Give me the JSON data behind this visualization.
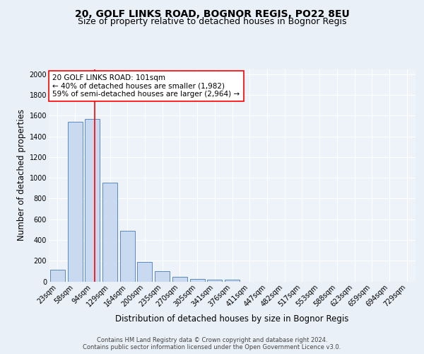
{
  "title_line1": "20, GOLF LINKS ROAD, BOGNOR REGIS, PO22 8EU",
  "title_line2": "Size of property relative to detached houses in Bognor Regis",
  "xlabel": "Distribution of detached houses by size in Bognor Regis",
  "ylabel": "Number of detached properties",
  "footnote": "Contains HM Land Registry data © Crown copyright and database right 2024.\nContains public sector information licensed under the Open Government Licence v3.0.",
  "bin_labels": [
    "23sqm",
    "58sqm",
    "94sqm",
    "129sqm",
    "164sqm",
    "200sqm",
    "235sqm",
    "270sqm",
    "305sqm",
    "341sqm",
    "376sqm",
    "411sqm",
    "447sqm",
    "482sqm",
    "517sqm",
    "553sqm",
    "588sqm",
    "623sqm",
    "659sqm",
    "694sqm",
    "729sqm"
  ],
  "bar_heights": [
    110,
    1540,
    1570,
    950,
    490,
    190,
    100,
    45,
    25,
    15,
    15,
    0,
    0,
    0,
    0,
    0,
    0,
    0,
    0,
    0,
    0
  ],
  "bar_color": "#c9d9f0",
  "bar_edge_color": "#5a8abf",
  "red_line_label": "20 GOLF LINKS ROAD: 101sqm",
  "annotation_line1": "← 40% of detached houses are smaller (1,982)",
  "annotation_line2": "59% of semi-detached houses are larger (2,964) →",
  "ylim": [
    0,
    2050
  ],
  "yticks": [
    0,
    200,
    400,
    600,
    800,
    1000,
    1200,
    1400,
    1600,
    1800,
    2000
  ],
  "bg_color": "#eaf0f8",
  "plot_bg_color": "#eef3fa",
  "grid_color": "#ffffff",
  "title_fontsize": 10,
  "subtitle_fontsize": 9,
  "axis_label_fontsize": 8.5,
  "tick_fontsize": 7,
  "annotation_fontsize": 7.5,
  "footnote_fontsize": 6
}
